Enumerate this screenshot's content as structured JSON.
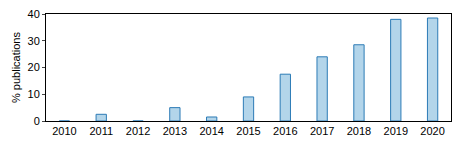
{
  "chart_data": {
    "type": "bar",
    "y_label": "% publications",
    "categories": [
      "2010",
      "2011",
      "2012",
      "2013",
      "2014",
      "2015",
      "2016",
      "2017",
      "2018",
      "2019",
      "2020"
    ],
    "values": [
      0,
      2.5,
      0,
      5,
      1.5,
      9,
      17.5,
      24,
      28.5,
      38,
      38.5
    ],
    "color": "#b3d5ea",
    "ylim": [
      0,
      40
    ],
    "yticks": [
      0,
      10,
      20,
      30,
      40
    ],
    "grid": false
  }
}
